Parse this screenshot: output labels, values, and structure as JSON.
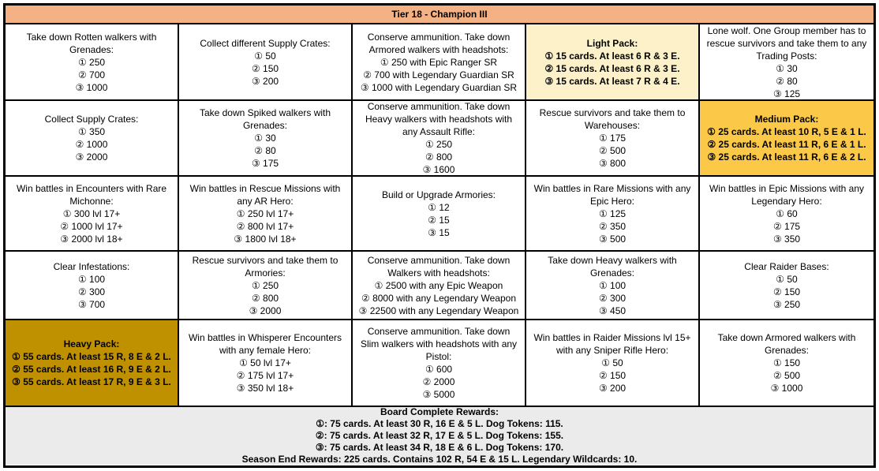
{
  "header": {
    "title": "Tier 18 - Champion III"
  },
  "colors": {
    "header_bg": "#F4B183",
    "light_pack_bg": "#FCF1C9",
    "medium_pack_bg": "#FBC947",
    "heavy_pack_bg": "#BF9000",
    "footer_bg": "#EBEBEB",
    "border": "#000000"
  },
  "grid": {
    "rows": [
      [
        {
          "lines": [
            "Take down Rotten walkers with Grenades:",
            "① 250",
            "② 700",
            "③ 1000"
          ]
        },
        {
          "lines": [
            "Collect different Supply Crates:",
            "① 50",
            "② 150",
            "③ 200"
          ]
        },
        {
          "lines": [
            "Conserve ammunition. Take down Armored walkers with headshots:",
            "① 250 with Epic Ranger SR",
            "② 700 with Legendary Guardian SR",
            "③ 1000 with Legendary Guardian SR"
          ]
        },
        {
          "style": "light-pack",
          "lines": [
            "Light Pack:",
            "① 15 cards. At least 6 R & 3 E.",
            "② 15 cards. At least 6 R & 3 E.",
            "③ 15 cards. At least 7 R & 4 E."
          ]
        },
        {
          "lines": [
            "Lone wolf. One Group member has to rescue survivors and take them to any Trading Posts:",
            "① 30",
            "② 80",
            "③ 125"
          ]
        }
      ],
      [
        {
          "lines": [
            "Collect Supply Crates:",
            "① 350",
            "② 1000",
            "③ 2000"
          ]
        },
        {
          "lines": [
            "Take down Spiked walkers with Grenades:",
            "① 30",
            "② 80",
            "③ 175"
          ]
        },
        {
          "lines": [
            "Conserve ammunition. Take down Heavy walkers with headshots with any Assault Rifle:",
            "① 250",
            "② 800",
            "③ 1600"
          ]
        },
        {
          "lines": [
            "Rescue survivors and take them to Warehouses:",
            "① 175",
            "② 500",
            "③ 800"
          ]
        },
        {
          "style": "medium-pack",
          "lines": [
            "Medium Pack:",
            "① 25 cards. At least 10 R, 5 E & 1 L.",
            "② 25 cards. At least 11 R, 6 E & 1 L.",
            "③ 25 cards. At least 11 R, 6 E & 2 L."
          ]
        }
      ],
      [
        {
          "lines": [
            "Win battles in Encounters with Rare Michonne:",
            "① 300 lvl 17+",
            "② 1000 lvl 17+",
            "③ 2000 lvl 18+"
          ]
        },
        {
          "lines": [
            "Win battles in Rescue Missions with any AR Hero:",
            "① 250 lvl 17+",
            "② 800 lvl 17+",
            "③ 1800 lvl 18+"
          ]
        },
        {
          "lines": [
            "Build or Upgrade Armories:",
            "① 12",
            "② 15",
            "③ 15"
          ]
        },
        {
          "lines": [
            "Win battles in Rare Missions with any Epic Hero:",
            "① 125",
            "② 350",
            "③ 500"
          ]
        },
        {
          "lines": [
            "Win battles in Epic Missions with any Legendary Hero:",
            "① 60",
            "② 175",
            "③ 350"
          ]
        }
      ],
      [
        {
          "lines": [
            "Clear Infestations:",
            "① 100",
            "② 300",
            "③ 700"
          ]
        },
        {
          "lines": [
            "Rescue survivors and take them to Armories:",
            "① 250",
            "② 800",
            "③ 2000"
          ]
        },
        {
          "lines": [
            "Conserve ammunition. Take down Walkers with headshots:",
            "① 2500 with any Epic Weapon",
            "② 8000 with any Legendary Weapon",
            "③ 22500 with any Legendary Weapon"
          ]
        },
        {
          "lines": [
            "Take down Heavy walkers with Grenades:",
            "① 100",
            "② 300",
            "③ 450"
          ]
        },
        {
          "lines": [
            "Clear Raider Bases:",
            "① 50",
            "② 150",
            "③ 250"
          ]
        }
      ],
      [
        {
          "style": "heavy-pack",
          "lines": [
            "Heavy Pack:",
            "① 55 cards. At least 15 R, 8 E & 2 L.",
            "② 55 cards. At least 16 R, 9 E & 2 L.",
            "③ 55 cards. At least 17 R, 9 E & 3 L."
          ]
        },
        {
          "lines": [
            "Win battles in Whisperer Encounters with any female Hero:",
            "① 50 lvl 17+",
            "② 175 lvl 17+",
            "③ 350 lvl 18+"
          ]
        },
        {
          "lines": [
            "Conserve ammunition. Take down Slim walkers with headshots with any Pistol:",
            "① 600",
            "② 2000",
            "③ 5000"
          ]
        },
        {
          "lines": [
            "Win battles in Raider Missions lvl 15+ with any Sniper Rifle Hero:",
            "① 50",
            "② 150",
            "③ 200"
          ]
        },
        {
          "lines": [
            "Take down Armored walkers with Grenades:",
            "① 150",
            "② 500",
            "③ 1000"
          ]
        }
      ]
    ]
  },
  "footer": {
    "lines": [
      "Board Complete Rewards:",
      "①: 75 cards. At least 30 R, 16 E & 5 L. Dog Tokens: 115.",
      "②: 75 cards. At least 32 R, 17 E & 5 L. Dog Tokens: 155.",
      "③: 75 cards. At least 34 R, 18 E & 6 L. Dog Tokens: 170.",
      "Season End Rewards: 225 cards. Contains 102 R, 54 E & 15 L. Legendary Wildcards: 10."
    ]
  }
}
